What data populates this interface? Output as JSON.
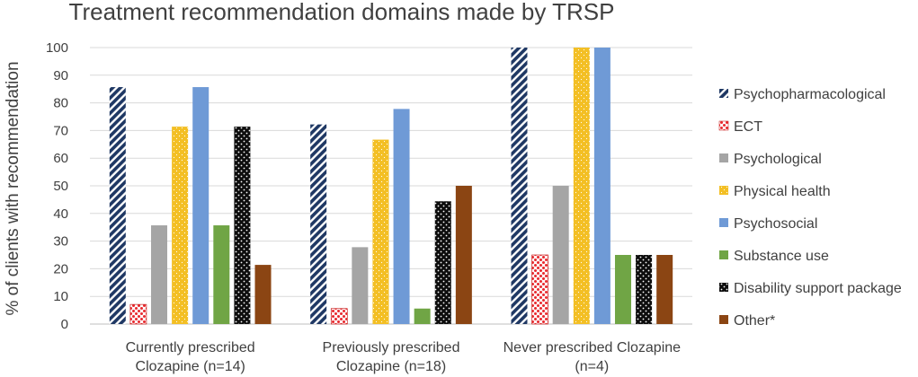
{
  "chart_data": {
    "type": "bar",
    "title": "Treatment recommendation domains made by TRSP",
    "xlabel": "",
    "ylabel": "% of clients with recommendation",
    "ylim": [
      0,
      100
    ],
    "yticks": [
      0,
      10,
      20,
      30,
      40,
      50,
      60,
      70,
      80,
      90,
      100
    ],
    "grid": true,
    "legend_position": "right",
    "categories": [
      [
        "Currently prescribed",
        "Clozapine (n=14)"
      ],
      [
        "Previously prescribed",
        "Clozapine (n=18)"
      ],
      [
        "Never prescribed Clozapine",
        "(n=4)"
      ]
    ],
    "series": [
      {
        "name": "Psychopharmacological",
        "values": [
          85.7,
          72.2,
          100
        ],
        "color": "#1f3864",
        "pattern": "diagonal-stripes"
      },
      {
        "name": "ECT",
        "values": [
          7.1,
          5.6,
          25
        ],
        "color": "#e8282d",
        "pattern": "red-dots"
      },
      {
        "name": "Psychological",
        "values": [
          35.7,
          27.8,
          50
        ],
        "color": "#a5a5a5",
        "pattern": "solid"
      },
      {
        "name": "Physical health",
        "values": [
          71.4,
          66.7,
          100
        ],
        "color": "#f3bf24",
        "pattern": "light-dots"
      },
      {
        "name": "Psychosocial",
        "values": [
          85.7,
          77.8,
          100
        ],
        "color": "#6f9ad6",
        "pattern": "solid"
      },
      {
        "name": "Substance use",
        "values": [
          35.7,
          5.6,
          25
        ],
        "color": "#70a545",
        "pattern": "solid"
      },
      {
        "name": "Disability support package",
        "values": [
          71.4,
          44.4,
          25
        ],
        "color": "#0d0d0d",
        "pattern": "white-dots"
      },
      {
        "name": "Other*",
        "values": [
          21.4,
          50,
          25
        ],
        "color": "#8b4513",
        "pattern": "solid"
      }
    ]
  }
}
